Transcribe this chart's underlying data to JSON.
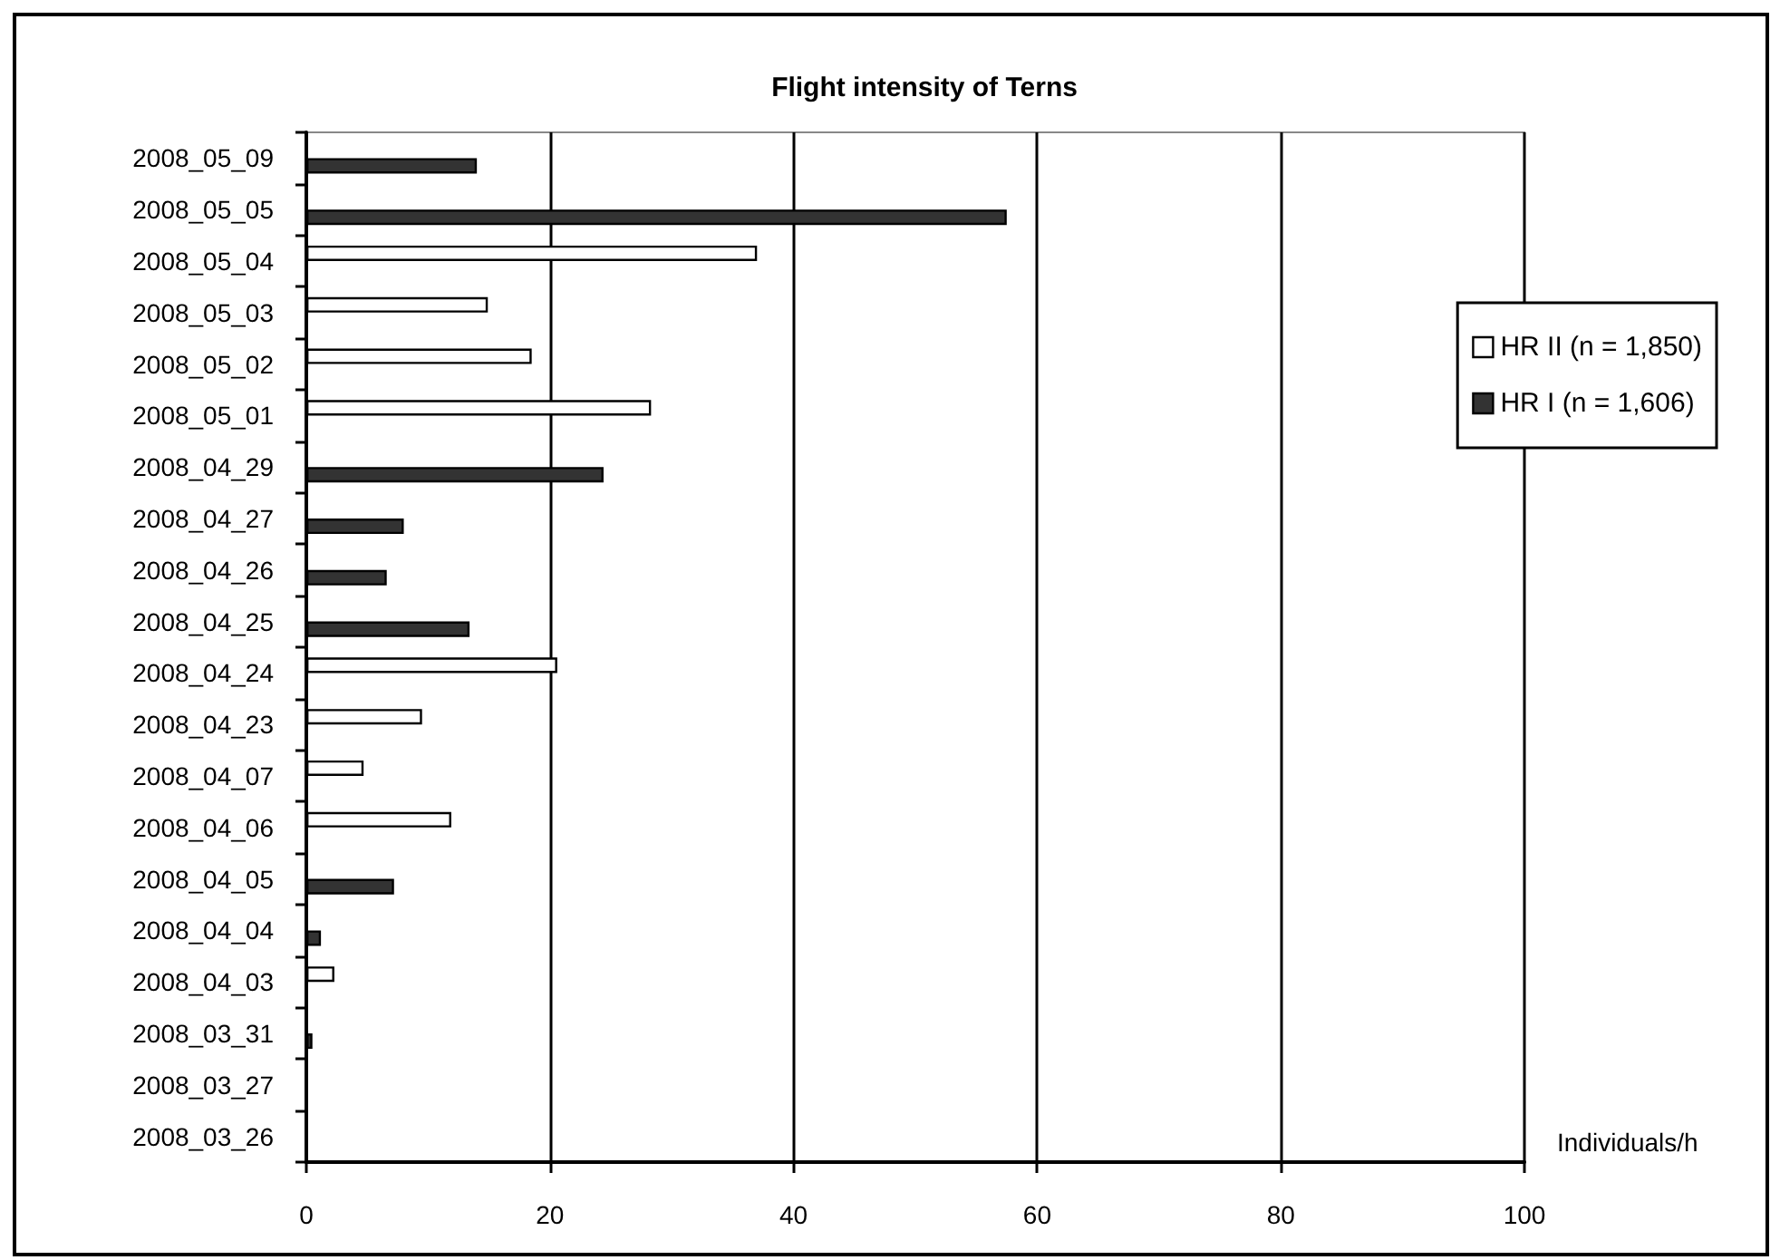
{
  "chart_data": {
    "type": "bar",
    "orientation": "horizontal",
    "title": "Flight intensity of Terns",
    "xlabel": "Individuals/h",
    "categories": [
      "2008_05_09",
      "2008_05_05",
      "2008_05_04",
      "2008_05_03",
      "2008_05_02",
      "2008_05_01",
      "2008_04_29",
      "2008_04_27",
      "2008_04_26",
      "2008_04_25",
      "2008_04_24",
      "2008_04_23",
      "2008_04_07",
      "2008_04_06",
      "2008_04_05",
      "2008_04_04",
      "2008_04_03",
      "2008_03_31",
      "2008_03_27",
      "2008_03_26"
    ],
    "series": [
      {
        "name": "HR II (n = 1,850)",
        "color": "#ffffff",
        "values": [
          null,
          null,
          37.0,
          14.9,
          18.5,
          28.3,
          null,
          null,
          null,
          null,
          20.6,
          9.5,
          4.7,
          11.9,
          null,
          null,
          2.3,
          null,
          null,
          null
        ]
      },
      {
        "name": "HR I (n = 1,606)",
        "color": "#333333",
        "values": [
          14.0,
          57.5,
          null,
          null,
          null,
          null,
          24.4,
          8.0,
          6.6,
          13.4,
          null,
          null,
          null,
          null,
          7.2,
          1.2,
          null,
          0.5,
          null,
          null
        ]
      }
    ],
    "xlim": [
      0,
      100
    ],
    "xticks": [
      0,
      20,
      40,
      60,
      80,
      100
    ],
    "grid": "x",
    "legend": "right"
  }
}
